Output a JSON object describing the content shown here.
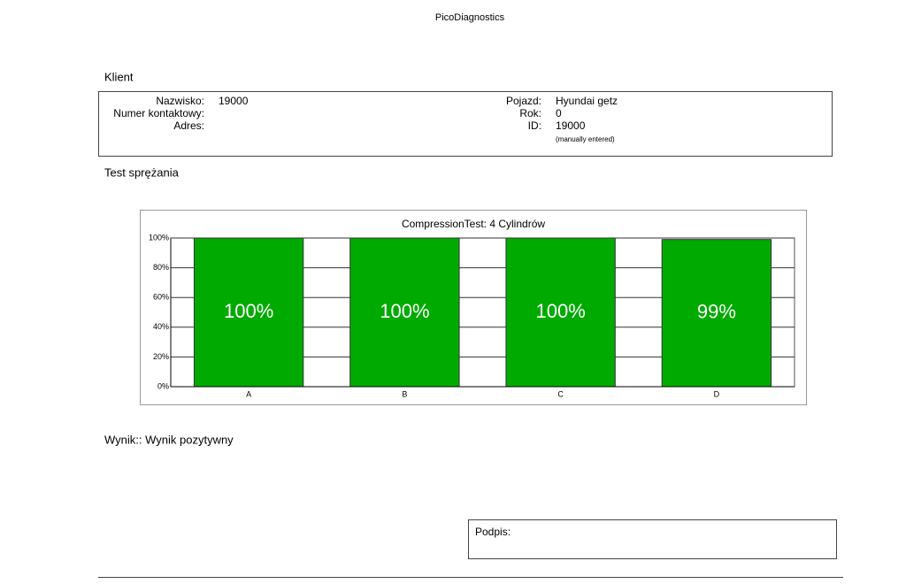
{
  "header": {
    "title": "PicoDiagnostics"
  },
  "client": {
    "heading": "Klient",
    "fields": [
      {
        "label": "Nazwisko:",
        "value": "19000"
      },
      {
        "label": "Numer kontaktowy:"
      },
      {
        "label": "Adres:"
      }
    ],
    "vehicle": [
      {
        "label": "Pojazd:",
        "value": "Hyundai getz"
      },
      {
        "label": "Rok:",
        "value": "0"
      },
      {
        "label": "ID:",
        "value": "19000",
        "note": "(manually entered)"
      }
    ]
  },
  "test": {
    "heading": "Test sprężania"
  },
  "chart_data": {
    "type": "bar",
    "title": "CompressionTest: 4 Cylindrów",
    "categories": [
      "A",
      "B",
      "C",
      "D"
    ],
    "values": [
      100,
      100,
      100,
      99
    ],
    "value_labels": [
      "100%",
      "100%",
      "100%",
      "99%"
    ],
    "color": "#00aa00",
    "ylim": [
      0,
      100
    ],
    "yticks": [
      {
        "value": 0,
        "label": "0%"
      },
      {
        "value": 20,
        "label": "20%"
      },
      {
        "value": 40,
        "label": "40%"
      },
      {
        "value": 60,
        "label": "60%"
      },
      {
        "value": 80,
        "label": "80%"
      },
      {
        "value": 100,
        "label": "100%"
      }
    ],
    "grid": true
  },
  "result": {
    "text": "Wynik:: Wynik pozytywny"
  },
  "signature": {
    "label": "Podpis:"
  }
}
